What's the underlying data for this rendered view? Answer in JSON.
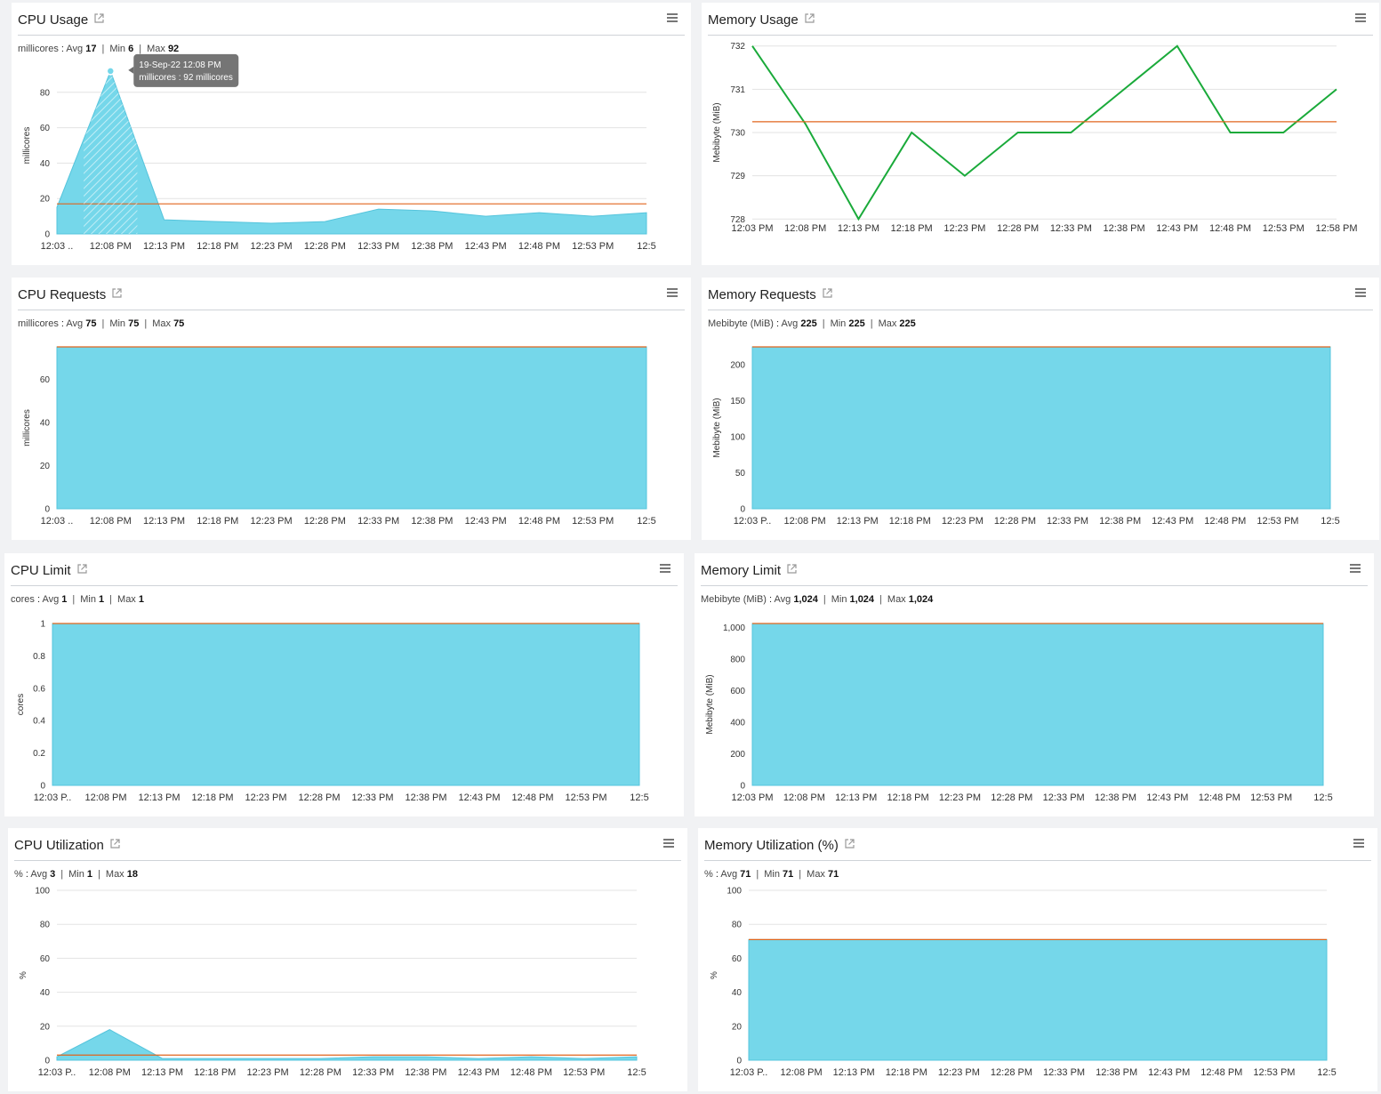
{
  "colors": {
    "area": "#75d7ea",
    "area_stroke": "#55c4dc",
    "avg_line": "#e0651d",
    "line_series": "#1aaa3a",
    "grid": "#e3e3e3"
  },
  "charts": [
    {
      "id": "cpu-usage",
      "title": "CPU Usage",
      "stats": {
        "unit": "millicores",
        "avg": "17",
        "min": "6",
        "max": "92"
      },
      "tooltip": {
        "date": "19-Sep-22 12:08 PM",
        "text": "millicores : 92 millicores"
      },
      "chart_data": {
        "type": "area",
        "title": "CPU Usage",
        "ylabel": "millicores",
        "x": [
          "12:03 ..",
          "12:08 PM",
          "12:13 PM",
          "12:18 PM",
          "12:23 PM",
          "12:28 PM",
          "12:33 PM",
          "12:38 PM",
          "12:43 PM",
          "12:48 PM",
          "12:53 PM",
          "12:5"
        ],
        "values": [
          15,
          92,
          8,
          7,
          6,
          7,
          14,
          13,
          10,
          12,
          10,
          12
        ],
        "average": 17,
        "ylim": [
          0,
          100
        ],
        "yticks": [
          0,
          20,
          40,
          60,
          80
        ]
      }
    },
    {
      "id": "memory-usage",
      "title": "Memory Usage",
      "stats": null,
      "chart_data": {
        "type": "line",
        "title": "Memory Usage",
        "ylabel": "Mebibyte (MiB)",
        "x": [
          "12:03 PM",
          "12:08 PM",
          "12:13 PM",
          "12:18 PM",
          "12:23 PM",
          "12:28 PM",
          "12:33 PM",
          "12:38 PM",
          "12:43 PM",
          "12:48 PM",
          "12:53 PM",
          "12:58 PM"
        ],
        "values": [
          732,
          730.2,
          728,
          730,
          729,
          730,
          730,
          731,
          732,
          730,
          730,
          731
        ],
        "average": 730.25,
        "ylim": [
          727.8,
          732.2
        ],
        "yticks": [
          728,
          729,
          730,
          731,
          732
        ]
      }
    },
    {
      "id": "cpu-requests",
      "title": "CPU Requests",
      "stats": {
        "unit": "millicores",
        "avg": "75",
        "min": "75",
        "max": "75"
      },
      "chart_data": {
        "type": "area",
        "title": "CPU Requests",
        "ylabel": "millicores",
        "x": [
          "12:03 ..",
          "12:08 PM",
          "12:13 PM",
          "12:18 PM",
          "12:23 PM",
          "12:28 PM",
          "12:33 PM",
          "12:38 PM",
          "12:43 PM",
          "12:48 PM",
          "12:53 PM",
          "12:5"
        ],
        "values": [
          75,
          75,
          75,
          75,
          75,
          75,
          75,
          75,
          75,
          75,
          75,
          75
        ],
        "average": 75,
        "ylim": [
          0,
          75
        ],
        "yticks": [
          0,
          20,
          40,
          60
        ]
      }
    },
    {
      "id": "memory-requests",
      "title": "Memory Requests",
      "stats": {
        "unit": "Mebibyte (MiB)",
        "avg": "225",
        "min": "225",
        "max": "225"
      },
      "chart_data": {
        "type": "area",
        "title": "Memory Requests",
        "ylabel": "Mebibyte (MiB)",
        "x": [
          "12:03 P..",
          "12:08 PM",
          "12:13 PM",
          "12:18 PM",
          "12:23 PM",
          "12:28 PM",
          "12:33 PM",
          "12:38 PM",
          "12:43 PM",
          "12:48 PM",
          "12:53 PM",
          "12:5"
        ],
        "values": [
          225,
          225,
          225,
          225,
          225,
          225,
          225,
          225,
          225,
          225,
          225,
          225
        ],
        "average": 225,
        "ylim": [
          0,
          225
        ],
        "yticks": [
          0,
          50,
          100,
          150,
          200
        ]
      }
    },
    {
      "id": "cpu-limit",
      "title": "CPU Limit",
      "stats": {
        "unit": "cores",
        "avg": "1",
        "min": "1",
        "max": "1"
      },
      "chart_data": {
        "type": "area",
        "title": "CPU Limit",
        "ylabel": "cores",
        "x": [
          "12:03 P..",
          "12:08 PM",
          "12:13 PM",
          "12:18 PM",
          "12:23 PM",
          "12:28 PM",
          "12:33 PM",
          "12:38 PM",
          "12:43 PM",
          "12:48 PM",
          "12:53 PM",
          "12:5"
        ],
        "values": [
          1,
          1,
          1,
          1,
          1,
          1,
          1,
          1,
          1,
          1,
          1,
          1
        ],
        "average": 1,
        "ylim": [
          0,
          1
        ],
        "yticks": [
          0,
          0.2,
          0.4,
          0.6,
          0.8,
          1
        ]
      }
    },
    {
      "id": "memory-limit",
      "title": "Memory Limit",
      "stats": {
        "unit": "Mebibyte (MiB)",
        "avg": "1,024",
        "min": "1,024",
        "max": "1,024"
      },
      "chart_data": {
        "type": "area",
        "title": "Memory Limit",
        "ylabel": "Mebibyte (MiB)",
        "x": [
          "12:03 PM",
          "12:08 PM",
          "12:13 PM",
          "12:18 PM",
          "12:23 PM",
          "12:28 PM",
          "12:33 PM",
          "12:38 PM",
          "12:43 PM",
          "12:48 PM",
          "12:53 PM",
          "12:5"
        ],
        "values": [
          1024,
          1024,
          1024,
          1024,
          1024,
          1024,
          1024,
          1024,
          1024,
          1024,
          1024,
          1024
        ],
        "average": 1024,
        "ylim": [
          0,
          1024
        ],
        "yticks": [
          0,
          200,
          400,
          600,
          800,
          1000
        ],
        "ytick_labels": [
          "0",
          "200",
          "400",
          "600",
          "800",
          "1,000"
        ]
      }
    },
    {
      "id": "cpu-utilization",
      "title": "CPU Utilization",
      "stats": {
        "unit": "%",
        "avg": "3",
        "min": "1",
        "max": "18"
      },
      "chart_data": {
        "type": "area",
        "title": "CPU Utilization",
        "ylabel": "%",
        "x": [
          "12:03 P..",
          "12:08 PM",
          "12:13 PM",
          "12:18 PM",
          "12:23 PM",
          "12:28 PM",
          "12:33 PM",
          "12:38 PM",
          "12:43 PM",
          "12:48 PM",
          "12:53 PM",
          "12:5"
        ],
        "values": [
          2,
          18,
          1,
          1,
          1,
          1,
          2,
          2,
          1,
          2,
          1,
          2
        ],
        "average": 3,
        "ylim": [
          0,
          100
        ],
        "yticks": [
          0,
          20,
          40,
          60,
          80,
          100
        ]
      }
    },
    {
      "id": "memory-utilization",
      "title": "Memory Utilization (%)",
      "stats": {
        "unit": "%",
        "avg": "71",
        "min": "71",
        "max": "71"
      },
      "chart_data": {
        "type": "area",
        "title": "Memory Utilization (%)",
        "ylabel": "%",
        "x": [
          "12:03 P..",
          "12:08 PM",
          "12:13 PM",
          "12:18 PM",
          "12:23 PM",
          "12:28 PM",
          "12:33 PM",
          "12:38 PM",
          "12:43 PM",
          "12:48 PM",
          "12:53 PM",
          "12:5"
        ],
        "values": [
          71,
          71,
          71,
          71,
          71,
          71,
          71,
          71,
          71,
          71,
          71,
          71
        ],
        "average": 71,
        "ylim": [
          0,
          100
        ],
        "yticks": [
          0,
          20,
          40,
          60,
          80,
          100
        ]
      }
    }
  ]
}
